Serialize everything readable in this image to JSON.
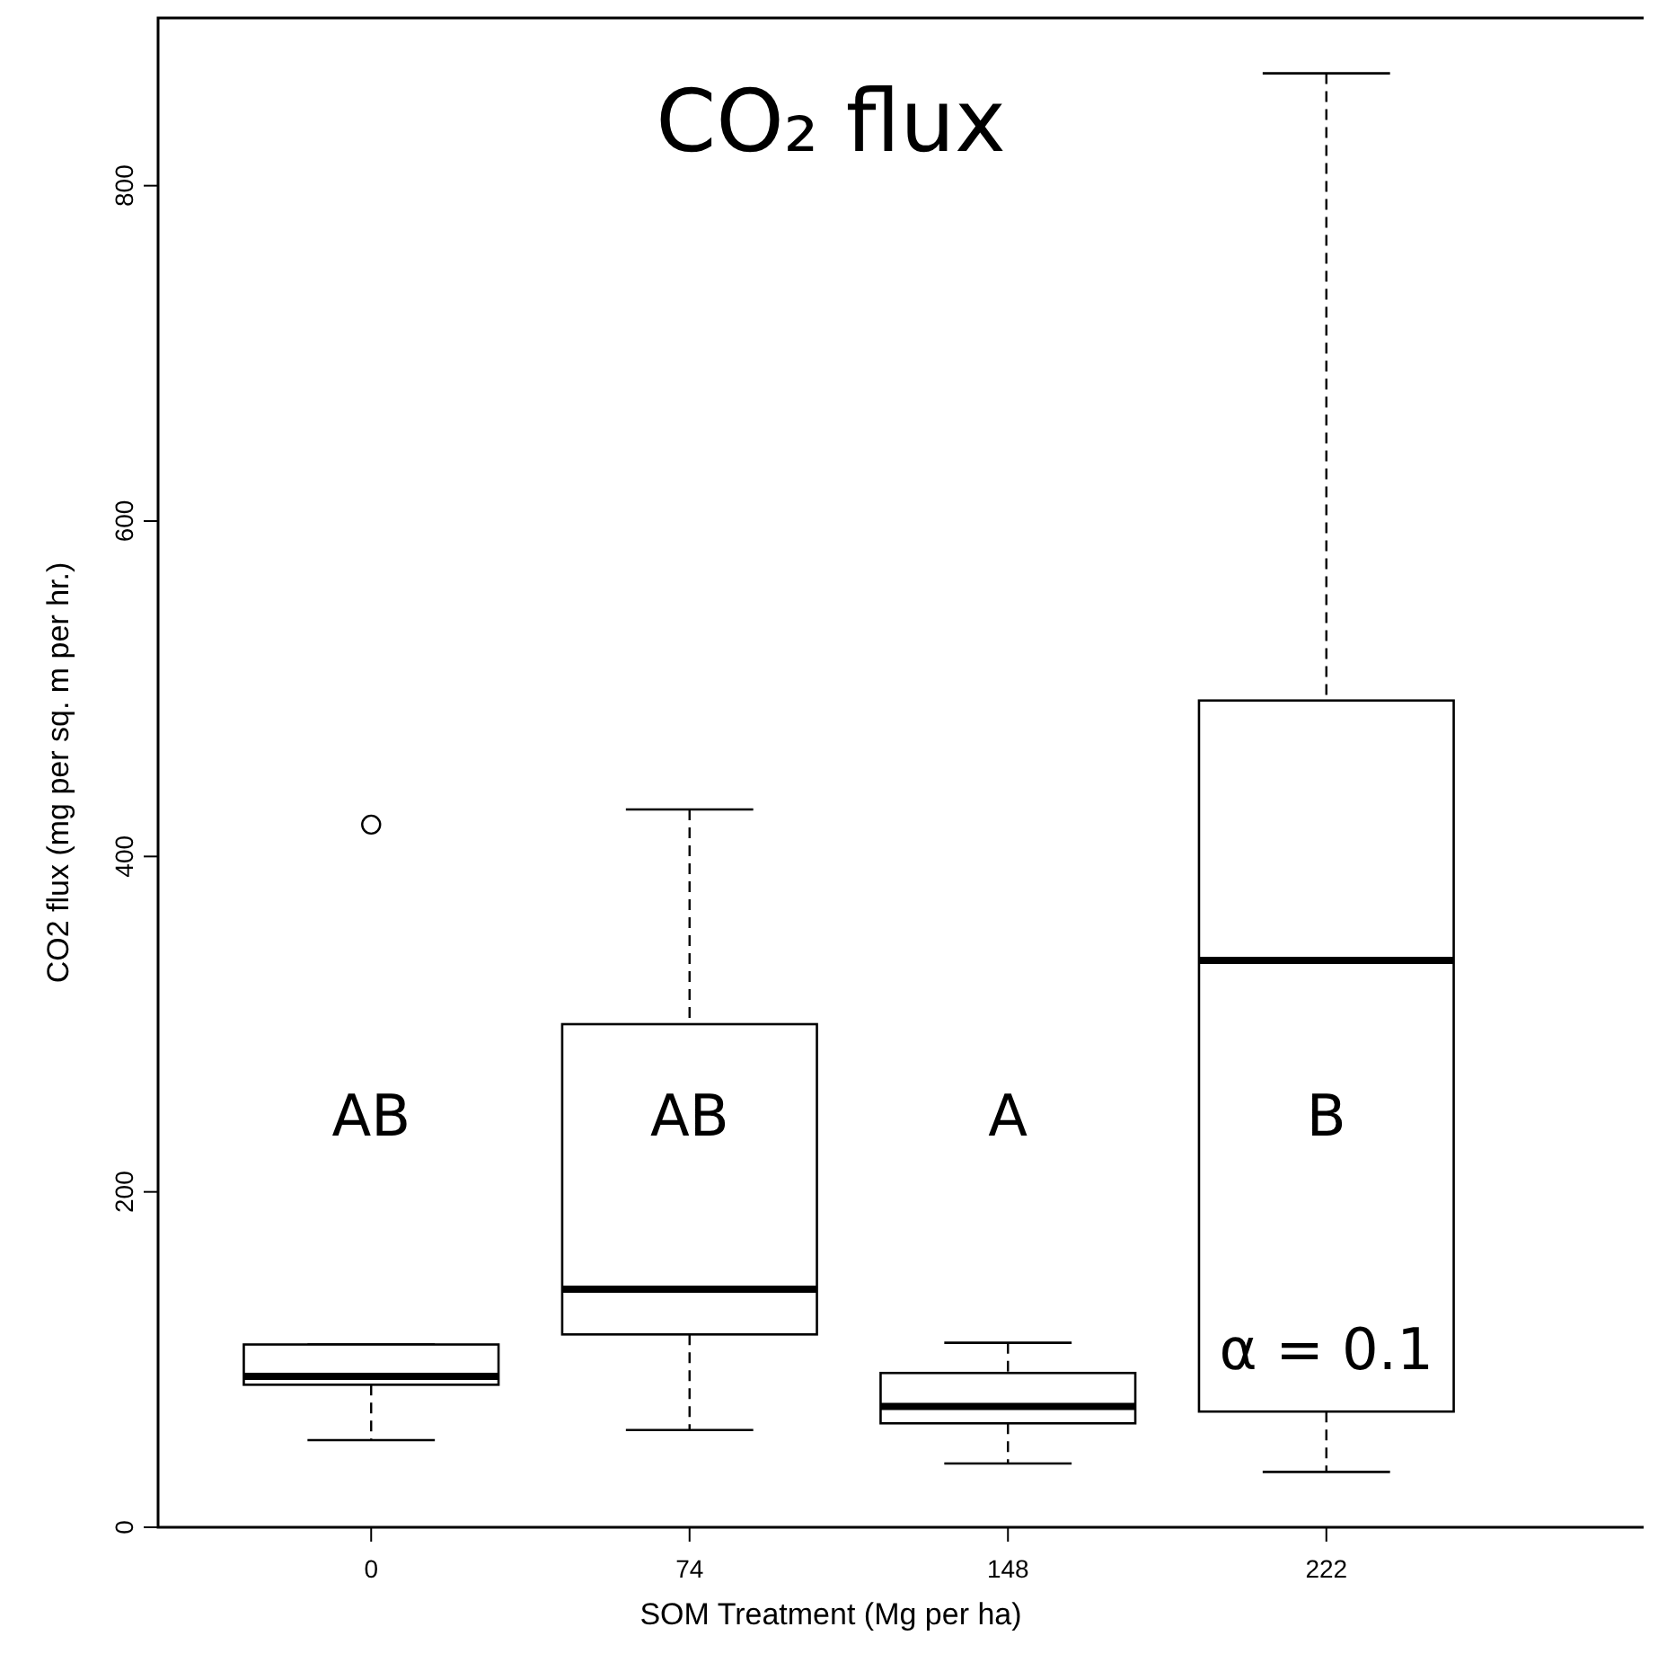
{
  "chart_data": {
    "type": "box",
    "title": "CO₂ flux",
    "xlabel": "SOM Treatment (Mg per ha)",
    "ylabel": "CO2 flux (mg per sq. m per hr.)",
    "categories": [
      "0",
      "74",
      "148",
      "222"
    ],
    "boxes": [
      {
        "low": 52,
        "q1": 85,
        "median": 90,
        "q3": 109,
        "high": 109,
        "outliers": [
          419
        ]
      },
      {
        "low": 58,
        "q1": 115,
        "median": 142,
        "q3": 300,
        "high": 428
      },
      {
        "low": 38,
        "q1": 62,
        "median": 72,
        "q3": 92,
        "high": 110
      },
      {
        "low": 33,
        "q1": 69,
        "median": 338,
        "q3": 493,
        "high": 867
      }
    ],
    "ylim": [
      0,
      900
    ],
    "yticks": [
      0,
      200,
      400,
      600,
      800
    ],
    "annotations": [
      "AB",
      "AB",
      "A",
      "B",
      "α = 0.1"
    ]
  }
}
